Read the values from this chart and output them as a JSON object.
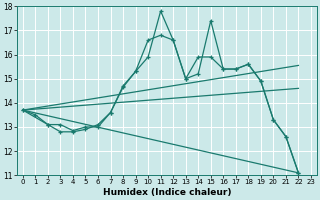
{
  "xlabel": "Humidex (Indice chaleur)",
  "xlim": [
    -0.5,
    23.5
  ],
  "ylim": [
    11,
    18
  ],
  "xtick_labels": [
    "0",
    "1",
    "2",
    "3",
    "4",
    "5",
    "6",
    "7",
    "8",
    "9",
    "10",
    "11",
    "12",
    "13",
    "14",
    "15",
    "16",
    "17",
    "18",
    "19",
    "20",
    "21",
    "22",
    "23"
  ],
  "xtick_pos": [
    0,
    1,
    2,
    3,
    4,
    5,
    6,
    7,
    8,
    9,
    10,
    11,
    12,
    13,
    14,
    15,
    16,
    17,
    18,
    19,
    20,
    21,
    22,
    23
  ],
  "yticks": [
    11,
    12,
    13,
    14,
    15,
    16,
    17,
    18
  ],
  "bg_color": "#cce9e9",
  "line_color": "#1a7a6e",
  "grid_color": "#ffffff",
  "line1_x": [
    0,
    1,
    2,
    3,
    4,
    5,
    6,
    7,
    8,
    9,
    10,
    11,
    12,
    13,
    14,
    15,
    16,
    17,
    18,
    19,
    20,
    21,
    22
  ],
  "line1_y": [
    13.7,
    13.5,
    13.1,
    12.8,
    12.8,
    12.9,
    13.1,
    13.6,
    14.7,
    15.3,
    15.9,
    17.8,
    16.6,
    15.0,
    15.9,
    15.9,
    15.4,
    15.4,
    15.6,
    14.9,
    13.3,
    12.6,
    11.1
  ],
  "line1_marker_x": [
    0,
    1,
    2,
    3,
    4,
    5,
    6,
    7,
    8,
    9,
    10,
    11,
    12,
    13,
    14,
    15,
    16,
    17,
    18,
    19,
    20,
    21,
    22
  ],
  "line2_x": [
    0,
    2,
    3,
    4,
    5,
    6,
    7,
    8,
    9,
    10,
    11,
    12,
    13,
    14,
    15,
    16,
    17,
    18,
    19,
    20,
    21,
    22
  ],
  "line2_y": [
    13.7,
    13.1,
    13.1,
    12.85,
    13.0,
    13.0,
    13.6,
    14.65,
    15.3,
    16.6,
    16.8,
    16.6,
    15.0,
    15.2,
    17.4,
    15.4,
    15.4,
    15.6,
    14.9,
    13.3,
    12.6,
    11.1
  ],
  "line2_marker_x": [
    0,
    2,
    3,
    4,
    5,
    6,
    7,
    8,
    9,
    10,
    11,
    12,
    13,
    14,
    15,
    16,
    17,
    18,
    19,
    20,
    21,
    22
  ],
  "line3_x": [
    0,
    22
  ],
  "line3_y": [
    13.7,
    15.55
  ],
  "line4_x": [
    0,
    22
  ],
  "line4_y": [
    13.7,
    14.6
  ],
  "line5_x": [
    0,
    22
  ],
  "line5_y": [
    13.7,
    11.1
  ]
}
